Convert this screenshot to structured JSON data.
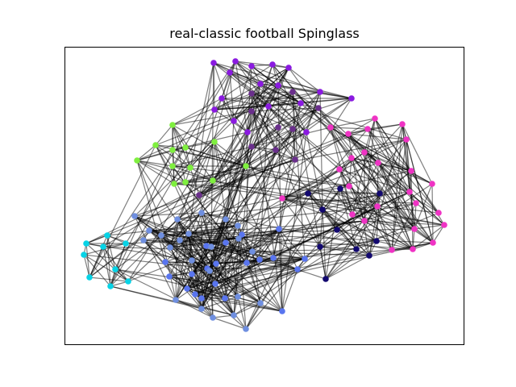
{
  "title": "real-classic football Spinglass",
  "colors": {
    "edge": "#000000",
    "frame": "#000000",
    "community_colors": [
      "#8a1ae0",
      "#6a2f8c",
      "#7fef3f",
      "#ef33c4",
      "#12086f",
      "#5975ef",
      "#07d3e6",
      "#6f8fe0"
    ]
  },
  "chart_data": {
    "type": "network",
    "title": "real-classic football Spinglass",
    "axes_visible": false
  }
}
